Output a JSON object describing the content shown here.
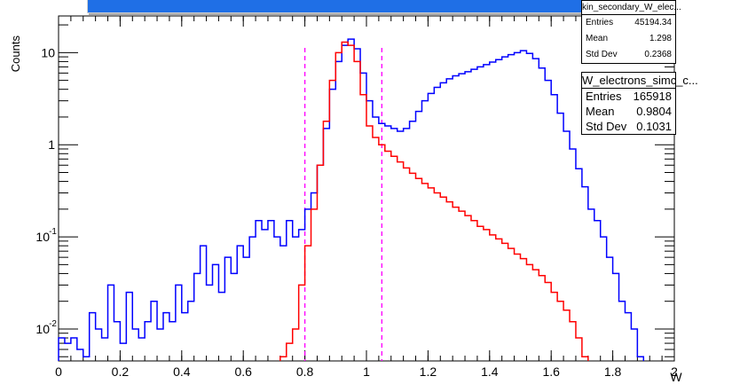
{
  "chart_data": {
    "type": "line",
    "xlabel": "W",
    "ylabel": "Counts",
    "xlim": [
      0,
      2
    ],
    "ylim": [
      0.0045,
      25
    ],
    "yscale": "log",
    "x_ticks": [
      "0",
      "0.2",
      "0.4",
      "0.6",
      "0.8",
      "1",
      "1.2",
      "1.4",
      "1.6",
      "1.8",
      "2"
    ],
    "y_ticks": [
      {
        "value": 0.01,
        "label": "10",
        "exp": "-2"
      },
      {
        "value": 0.1,
        "label": "10",
        "exp": "-1"
      },
      {
        "value": 1,
        "label": "1",
        "exp": ""
      },
      {
        "value": 10,
        "label": "10",
        "exp": ""
      }
    ],
    "cut_lines": [
      0.8,
      1.05
    ],
    "series": [
      {
        "color": "#0000ff",
        "x": [
          0.0,
          0.02,
          0.04,
          0.06,
          0.08,
          0.1,
          0.12,
          0.14,
          0.16,
          0.18,
          0.2,
          0.22,
          0.24,
          0.26,
          0.28,
          0.3,
          0.32,
          0.34,
          0.36,
          0.38,
          0.4,
          0.42,
          0.44,
          0.46,
          0.48,
          0.5,
          0.52,
          0.54,
          0.56,
          0.58,
          0.6,
          0.62,
          0.64,
          0.66,
          0.68,
          0.7,
          0.72,
          0.74,
          0.76,
          0.78,
          0.8,
          0.82,
          0.84,
          0.86,
          0.88,
          0.9,
          0.92,
          0.94,
          0.96,
          0.98,
          1.0,
          1.02,
          1.04,
          1.06,
          1.08,
          1.1,
          1.12,
          1.14,
          1.16,
          1.18,
          1.2,
          1.22,
          1.24,
          1.26,
          1.28,
          1.3,
          1.32,
          1.34,
          1.36,
          1.38,
          1.4,
          1.42,
          1.44,
          1.46,
          1.48,
          1.5,
          1.52,
          1.54,
          1.56,
          1.58,
          1.6,
          1.62,
          1.64,
          1.66,
          1.68,
          1.7,
          1.72,
          1.74,
          1.76,
          1.78,
          1.8,
          1.82,
          1.84,
          1.86,
          1.88
        ],
        "y": [
          0.008,
          0.007,
          0.008,
          0.006,
          0.005,
          0.015,
          0.01,
          0.008,
          0.03,
          0.012,
          0.007,
          0.025,
          0.01,
          0.008,
          0.012,
          0.02,
          0.01,
          0.015,
          0.012,
          0.03,
          0.015,
          0.02,
          0.04,
          0.08,
          0.03,
          0.05,
          0.025,
          0.06,
          0.04,
          0.08,
          0.06,
          0.1,
          0.15,
          0.12,
          0.15,
          0.1,
          0.08,
          0.15,
          0.1,
          0.12,
          0.2,
          0.3,
          0.6,
          1.5,
          4.0,
          8.0,
          12.0,
          14.0,
          11.0,
          6.0,
          3.0,
          2.0,
          1.7,
          1.6,
          1.5,
          1.4,
          1.5,
          1.8,
          2.3,
          3.0,
          3.6,
          4.2,
          4.7,
          5.2,
          5.6,
          5.9,
          6.2,
          6.6,
          7.0,
          7.4,
          7.9,
          8.4,
          9.0,
          9.5,
          10.0,
          10.5,
          9.8,
          8.6,
          6.8,
          5.0,
          3.5,
          2.2,
          1.4,
          0.9,
          0.55,
          0.35,
          0.2,
          0.15,
          0.1,
          0.06,
          0.04,
          0.02,
          0.015,
          0.01,
          0.005
        ]
      },
      {
        "color": "#ff0000",
        "x": [
          0.72,
          0.74,
          0.76,
          0.78,
          0.8,
          0.82,
          0.84,
          0.86,
          0.88,
          0.9,
          0.92,
          0.94,
          0.96,
          0.98,
          1.0,
          1.02,
          1.04,
          1.06,
          1.08,
          1.1,
          1.12,
          1.14,
          1.16,
          1.18,
          1.2,
          1.22,
          1.24,
          1.26,
          1.28,
          1.3,
          1.32,
          1.34,
          1.36,
          1.38,
          1.4,
          1.42,
          1.44,
          1.46,
          1.48,
          1.5,
          1.52,
          1.54,
          1.56,
          1.58,
          1.6,
          1.62,
          1.64,
          1.66,
          1.68,
          1.7
        ],
        "y": [
          0.005,
          0.007,
          0.01,
          0.03,
          0.08,
          0.2,
          0.6,
          1.8,
          5.0,
          10.0,
          13.0,
          12.0,
          8.0,
          3.5,
          1.6,
          1.2,
          1.0,
          0.85,
          0.75,
          0.65,
          0.56,
          0.49,
          0.43,
          0.38,
          0.34,
          0.3,
          0.27,
          0.24,
          0.21,
          0.19,
          0.17,
          0.15,
          0.13,
          0.12,
          0.105,
          0.095,
          0.085,
          0.075,
          0.065,
          0.058,
          0.05,
          0.044,
          0.038,
          0.032,
          0.025,
          0.02,
          0.016,
          0.012,
          0.008,
          0.005
        ]
      }
    ]
  },
  "stats_boxes": [
    {
      "title": "kin_secondary_W_elec...",
      "rows": [
        {
          "label": "Entries",
          "value": "45194.34"
        },
        {
          "label": "Mean",
          "value": "1.298"
        },
        {
          "label": "Std Dev",
          "value": "0.2368"
        }
      ]
    },
    {
      "title": "W_electrons_simc_c...",
      "rows": [
        {
          "label": "Entries",
          "value": "165918"
        },
        {
          "label": "Mean",
          "value": "0.9804"
        },
        {
          "label": "Std Dev",
          "value": "0.1031"
        }
      ]
    }
  ],
  "colors": {
    "blue_series": "#0000ff",
    "red_series": "#ff0000",
    "cut_line": "#ff00ff",
    "title_banner": "#1f6fe6"
  }
}
